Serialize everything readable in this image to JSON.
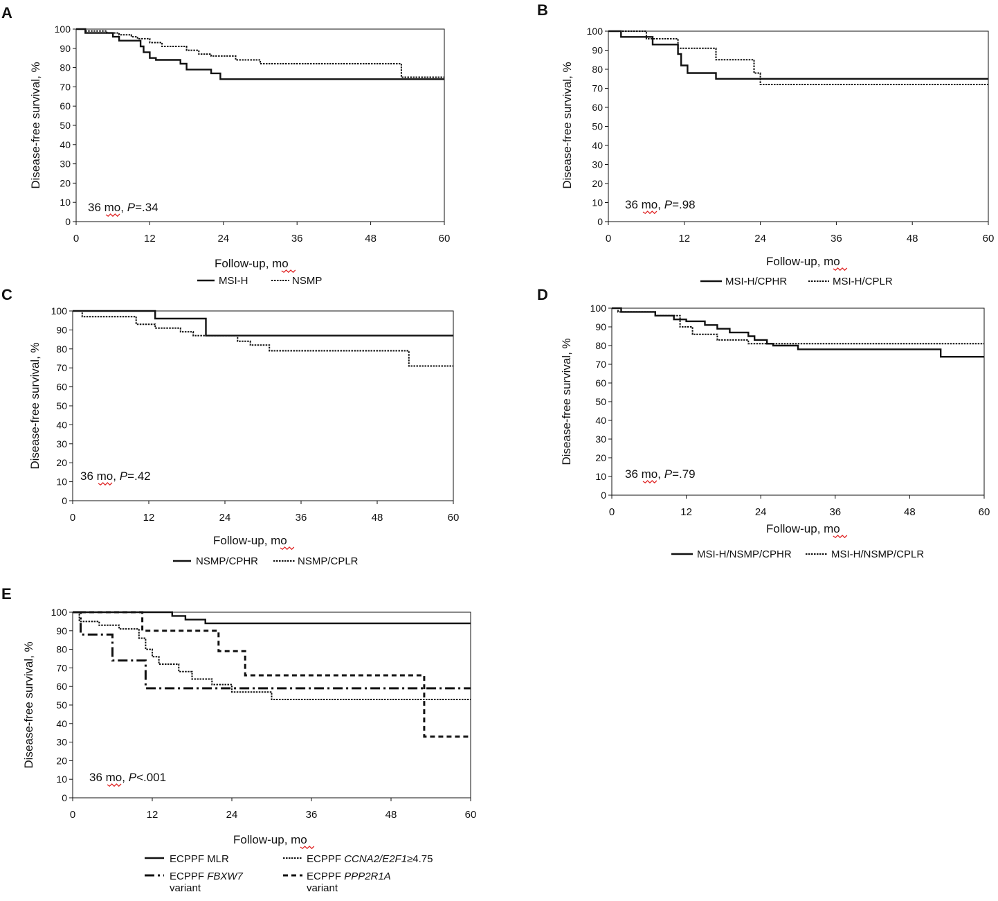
{
  "figure": {
    "description_panels": [
      "A",
      "B",
      "C",
      "D",
      "E"
    ]
  },
  "styles": {
    "line_color": "#111111",
    "squiggle_color": "#e02424",
    "dash_patterns": {
      "solid": "",
      "dotted": "2.5,1.5",
      "dashdot": "14,5,3,5",
      "dashed": "7,5"
    }
  },
  "chart_data": [
    {
      "panel": "A",
      "type": "line",
      "subtype": "kaplan-meier step",
      "xlabel_prefix": "Follow-up, ",
      "xlabel_unit": "mo",
      "ylabel": "Disease-free survival, %",
      "xlim": [
        0,
        60
      ],
      "ylim": [
        0,
        100
      ],
      "xticks": [
        0,
        12,
        24,
        36,
        48,
        60
      ],
      "yticks": [
        0,
        10,
        20,
        30,
        40,
        50,
        60,
        70,
        80,
        90,
        100
      ],
      "annotation": {
        "prefix": "36 ",
        "unit": "mo",
        "sep": ", ",
        "p": "P",
        "rest": "=.34"
      },
      "series": [
        {
          "name": "MSI-H",
          "style": "solid",
          "points": [
            [
              0,
              100
            ],
            [
              1.5,
              100
            ],
            [
              1.5,
              98
            ],
            [
              6,
              98
            ],
            [
              6,
              96
            ],
            [
              7,
              96
            ],
            [
              7,
              94
            ],
            [
              10.5,
              94
            ],
            [
              10.5,
              91
            ],
            [
              11,
              91
            ],
            [
              11,
              88
            ],
            [
              12,
              88
            ],
            [
              12,
              85
            ],
            [
              13,
              85
            ],
            [
              13,
              84
            ],
            [
              17,
              84
            ],
            [
              17,
              82
            ],
            [
              18,
              82
            ],
            [
              18,
              79
            ],
            [
              22,
              79
            ],
            [
              22,
              77
            ],
            [
              23.5,
              77
            ],
            [
              23.5,
              74
            ],
            [
              60,
              74
            ]
          ]
        },
        {
          "name": "NSMP",
          "style": "dotted",
          "points": [
            [
              0,
              100
            ],
            [
              1.5,
              100
            ],
            [
              1.5,
              99
            ],
            [
              5,
              99
            ],
            [
              5,
              98
            ],
            [
              7,
              98
            ],
            [
              7,
              97
            ],
            [
              9,
              97
            ],
            [
              9,
              96
            ],
            [
              10,
              96
            ],
            [
              10,
              95
            ],
            [
              12,
              95
            ],
            [
              12,
              93
            ],
            [
              14,
              93
            ],
            [
              14,
              91
            ],
            [
              18,
              91
            ],
            [
              18,
              89
            ],
            [
              20,
              89
            ],
            [
              20,
              87
            ],
            [
              22,
              87
            ],
            [
              22,
              86
            ],
            [
              26,
              86
            ],
            [
              26,
              84
            ],
            [
              30,
              84
            ],
            [
              30,
              82
            ],
            [
              53,
              82
            ],
            [
              53,
              75
            ],
            [
              60,
              75
            ]
          ]
        }
      ]
    },
    {
      "panel": "B",
      "type": "line",
      "subtype": "kaplan-meier step",
      "xlabel_prefix": "Follow-up, ",
      "xlabel_unit": "mo",
      "ylabel": "Disease-free survival, %",
      "xlim": [
        0,
        60
      ],
      "ylim": [
        0,
        100
      ],
      "xticks": [
        0,
        12,
        24,
        36,
        48,
        60
      ],
      "yticks": [
        0,
        10,
        20,
        30,
        40,
        50,
        60,
        70,
        80,
        90,
        100
      ],
      "annotation": {
        "prefix": "36 ",
        "unit": "mo",
        "sep": ", ",
        "p": "P",
        "rest": "=.98"
      },
      "series": [
        {
          "name": "MSI-H/CPHR",
          "style": "solid",
          "points": [
            [
              0,
              100
            ],
            [
              2,
              100
            ],
            [
              2,
              97
            ],
            [
              7,
              97
            ],
            [
              7,
              93
            ],
            [
              11,
              93
            ],
            [
              11,
              88
            ],
            [
              11.5,
              88
            ],
            [
              11.5,
              82
            ],
            [
              12.5,
              82
            ],
            [
              12.5,
              78
            ],
            [
              17,
              78
            ],
            [
              17,
              75
            ],
            [
              60,
              75
            ]
          ]
        },
        {
          "name": "MSI-H/CPLR",
          "style": "dotted",
          "points": [
            [
              0,
              100
            ],
            [
              6,
              100
            ],
            [
              6,
              96
            ],
            [
              11,
              96
            ],
            [
              11,
              91
            ],
            [
              17,
              91
            ],
            [
              17,
              85
            ],
            [
              23,
              85
            ],
            [
              23,
              78
            ],
            [
              24,
              78
            ],
            [
              24,
              72
            ],
            [
              60,
              72
            ]
          ]
        }
      ]
    },
    {
      "panel": "C",
      "type": "line",
      "subtype": "kaplan-meier step",
      "xlabel_prefix": "Follow-up, ",
      "xlabel_unit": "mo",
      "ylabel": "Disease-free survival, %",
      "xlim": [
        0,
        60
      ],
      "ylim": [
        0,
        100
      ],
      "xticks": [
        0,
        12,
        24,
        36,
        48,
        60
      ],
      "yticks": [
        0,
        10,
        20,
        30,
        40,
        50,
        60,
        70,
        80,
        90,
        100
      ],
      "annotation": {
        "prefix": "36 ",
        "unit": "mo",
        "sep": ", ",
        "p": "P",
        "rest": "=.42"
      },
      "series": [
        {
          "name": "NSMP/CPHR",
          "style": "solid",
          "points": [
            [
              0,
              100
            ],
            [
              13,
              100
            ],
            [
              13,
              96
            ],
            [
              21,
              96
            ],
            [
              21,
              87
            ],
            [
              60,
              87
            ]
          ]
        },
        {
          "name": "NSMP/CPLR",
          "style": "dotted",
          "points": [
            [
              0,
              100
            ],
            [
              1.5,
              100
            ],
            [
              1.5,
              97
            ],
            [
              10,
              97
            ],
            [
              10,
              93
            ],
            [
              13,
              93
            ],
            [
              13,
              91
            ],
            [
              17,
              91
            ],
            [
              17,
              89
            ],
            [
              19,
              89
            ],
            [
              19,
              87
            ],
            [
              26,
              87
            ],
            [
              26,
              84
            ],
            [
              28,
              84
            ],
            [
              28,
              82
            ],
            [
              31,
              82
            ],
            [
              31,
              79
            ],
            [
              53,
              79
            ],
            [
              53,
              71
            ],
            [
              60,
              71
            ]
          ]
        }
      ]
    },
    {
      "panel": "D",
      "type": "line",
      "subtype": "kaplan-meier step",
      "xlabel_prefix": "Follow-up, ",
      "xlabel_unit": "mo",
      "ylabel": "Disease-free survival, %",
      "xlim": [
        0,
        60
      ],
      "ylim": [
        0,
        100
      ],
      "xticks": [
        0,
        12,
        24,
        36,
        48,
        60
      ],
      "yticks": [
        0,
        10,
        20,
        30,
        40,
        50,
        60,
        70,
        80,
        90,
        100
      ],
      "annotation": {
        "prefix": "36 ",
        "unit": "mo",
        "sep": ", ",
        "p": "P",
        "rest": "=.79"
      },
      "series": [
        {
          "name": "MSI-H/NSMP/CPHR",
          "style": "solid",
          "points": [
            [
              0,
              100
            ],
            [
              1.5,
              100
            ],
            [
              1.5,
              98
            ],
            [
              7,
              98
            ],
            [
              7,
              96
            ],
            [
              10,
              96
            ],
            [
              10,
              94
            ],
            [
              12,
              94
            ],
            [
              12,
              93
            ],
            [
              15,
              93
            ],
            [
              15,
              91
            ],
            [
              17,
              91
            ],
            [
              17,
              89
            ],
            [
              19,
              89
            ],
            [
              19,
              87
            ],
            [
              22,
              87
            ],
            [
              22,
              85
            ],
            [
              23,
              85
            ],
            [
              23,
              83
            ],
            [
              25,
              83
            ],
            [
              25,
              81
            ],
            [
              26,
              81
            ],
            [
              26,
              80
            ],
            [
              30,
              80
            ],
            [
              30,
              78
            ],
            [
              53,
              78
            ],
            [
              53,
              74
            ],
            [
              60,
              74
            ]
          ]
        },
        {
          "name": "MSI-H/NSMP/CPLR",
          "style": "dotted",
          "points": [
            [
              0,
              100
            ],
            [
              1,
              100
            ],
            [
              1,
              98
            ],
            [
              7,
              98
            ],
            [
              7,
              96
            ],
            [
              11,
              96
            ],
            [
              11,
              90
            ],
            [
              13,
              90
            ],
            [
              13,
              86
            ],
            [
              17,
              86
            ],
            [
              17,
              83
            ],
            [
              22,
              83
            ],
            [
              22,
              81
            ],
            [
              60,
              81
            ]
          ]
        }
      ]
    },
    {
      "panel": "E",
      "type": "line",
      "subtype": "kaplan-meier step",
      "xlabel_prefix": "Follow-up, ",
      "xlabel_unit": "mo",
      "ylabel": "Disease-free survival, %",
      "xlim": [
        0,
        60
      ],
      "ylim": [
        0,
        100
      ],
      "xticks": [
        0,
        12,
        24,
        36,
        48,
        60
      ],
      "yticks": [
        0,
        10,
        20,
        30,
        40,
        50,
        60,
        70,
        80,
        90,
        100
      ],
      "annotation": {
        "prefix": "36 ",
        "unit": "mo",
        "sep": ", ",
        "p": "P",
        "rest": "<.001"
      },
      "series": [
        {
          "name": "ECPPF MLR",
          "style": "solid",
          "points": [
            [
              0,
              100
            ],
            [
              15,
              100
            ],
            [
              15,
              98
            ],
            [
              17,
              98
            ],
            [
              17,
              96
            ],
            [
              20,
              96
            ],
            [
              20,
              94
            ],
            [
              60,
              94
            ]
          ]
        },
        {
          "name": "ECPPF CCNA2/E2F1≥4.75",
          "style": "dotted",
          "points": [
            [
              0,
              100
            ],
            [
              1,
              100
            ],
            [
              1,
              95
            ],
            [
              4,
              95
            ],
            [
              4,
              93
            ],
            [
              7,
              93
            ],
            [
              7,
              91
            ],
            [
              10,
              91
            ],
            [
              10,
              86
            ],
            [
              11,
              86
            ],
            [
              11,
              80
            ],
            [
              12,
              80
            ],
            [
              12,
              76
            ],
            [
              13,
              76
            ],
            [
              13,
              72
            ],
            [
              16,
              72
            ],
            [
              16,
              68
            ],
            [
              18,
              68
            ],
            [
              18,
              64
            ],
            [
              21,
              64
            ],
            [
              21,
              61
            ],
            [
              24,
              61
            ],
            [
              24,
              57
            ],
            [
              30,
              57
            ],
            [
              30,
              53
            ],
            [
              60,
              53
            ]
          ]
        },
        {
          "name": "ECPPF FBXW7 variant",
          "style": "dashdot",
          "points": [
            [
              0,
              100
            ],
            [
              1.2,
              100
            ],
            [
              1.2,
              88
            ],
            [
              6,
              88
            ],
            [
              6,
              74
            ],
            [
              11,
              74
            ],
            [
              11,
              59
            ],
            [
              60,
              59
            ]
          ]
        },
        {
          "name": "ECPPF PPP2R1A variant",
          "style": "dashed",
          "points": [
            [
              0,
              100
            ],
            [
              10.5,
              100
            ],
            [
              10.5,
              90
            ],
            [
              22,
              90
            ],
            [
              22,
              79
            ],
            [
              26,
              79
            ],
            [
              26,
              66
            ],
            [
              53,
              66
            ],
            [
              53,
              33
            ],
            [
              60,
              33
            ]
          ]
        }
      ]
    }
  ],
  "legends": {
    "A": [
      {
        "label": "MSI-H",
        "style": "solid"
      },
      {
        "label": "NSMP",
        "style": "dotted"
      }
    ],
    "B": [
      {
        "label": "MSI-H/CPHR",
        "style": "solid"
      },
      {
        "label": "MSI-H/CPLR",
        "style": "dotted"
      }
    ],
    "C": [
      {
        "label": "NSMP/CPHR",
        "style": "solid"
      },
      {
        "label": "NSMP/CPLR",
        "style": "dotted"
      }
    ],
    "D": [
      {
        "label": "MSI-H/NSMP/CPHR",
        "style": "solid"
      },
      {
        "label": "MSI-H/NSMP/CPLR",
        "style": "dotted"
      }
    ],
    "E": [
      {
        "prefix": "ECPPF ",
        "italic": "",
        "suffix": "MLR",
        "line2": "",
        "style": "solid"
      },
      {
        "prefix": "ECPPF ",
        "italic": "CCNA2/E2F1",
        "suffix": "≥4.75",
        "line2": "",
        "style": "dotted"
      },
      {
        "prefix": "ECPPF ",
        "italic": "FBXW7",
        "suffix": "",
        "line2": "variant",
        "style": "dashdot"
      },
      {
        "prefix": "ECPPF ",
        "italic": "PPP2R1A",
        "suffix": "",
        "line2": "variant",
        "style": "dashed"
      }
    ]
  }
}
